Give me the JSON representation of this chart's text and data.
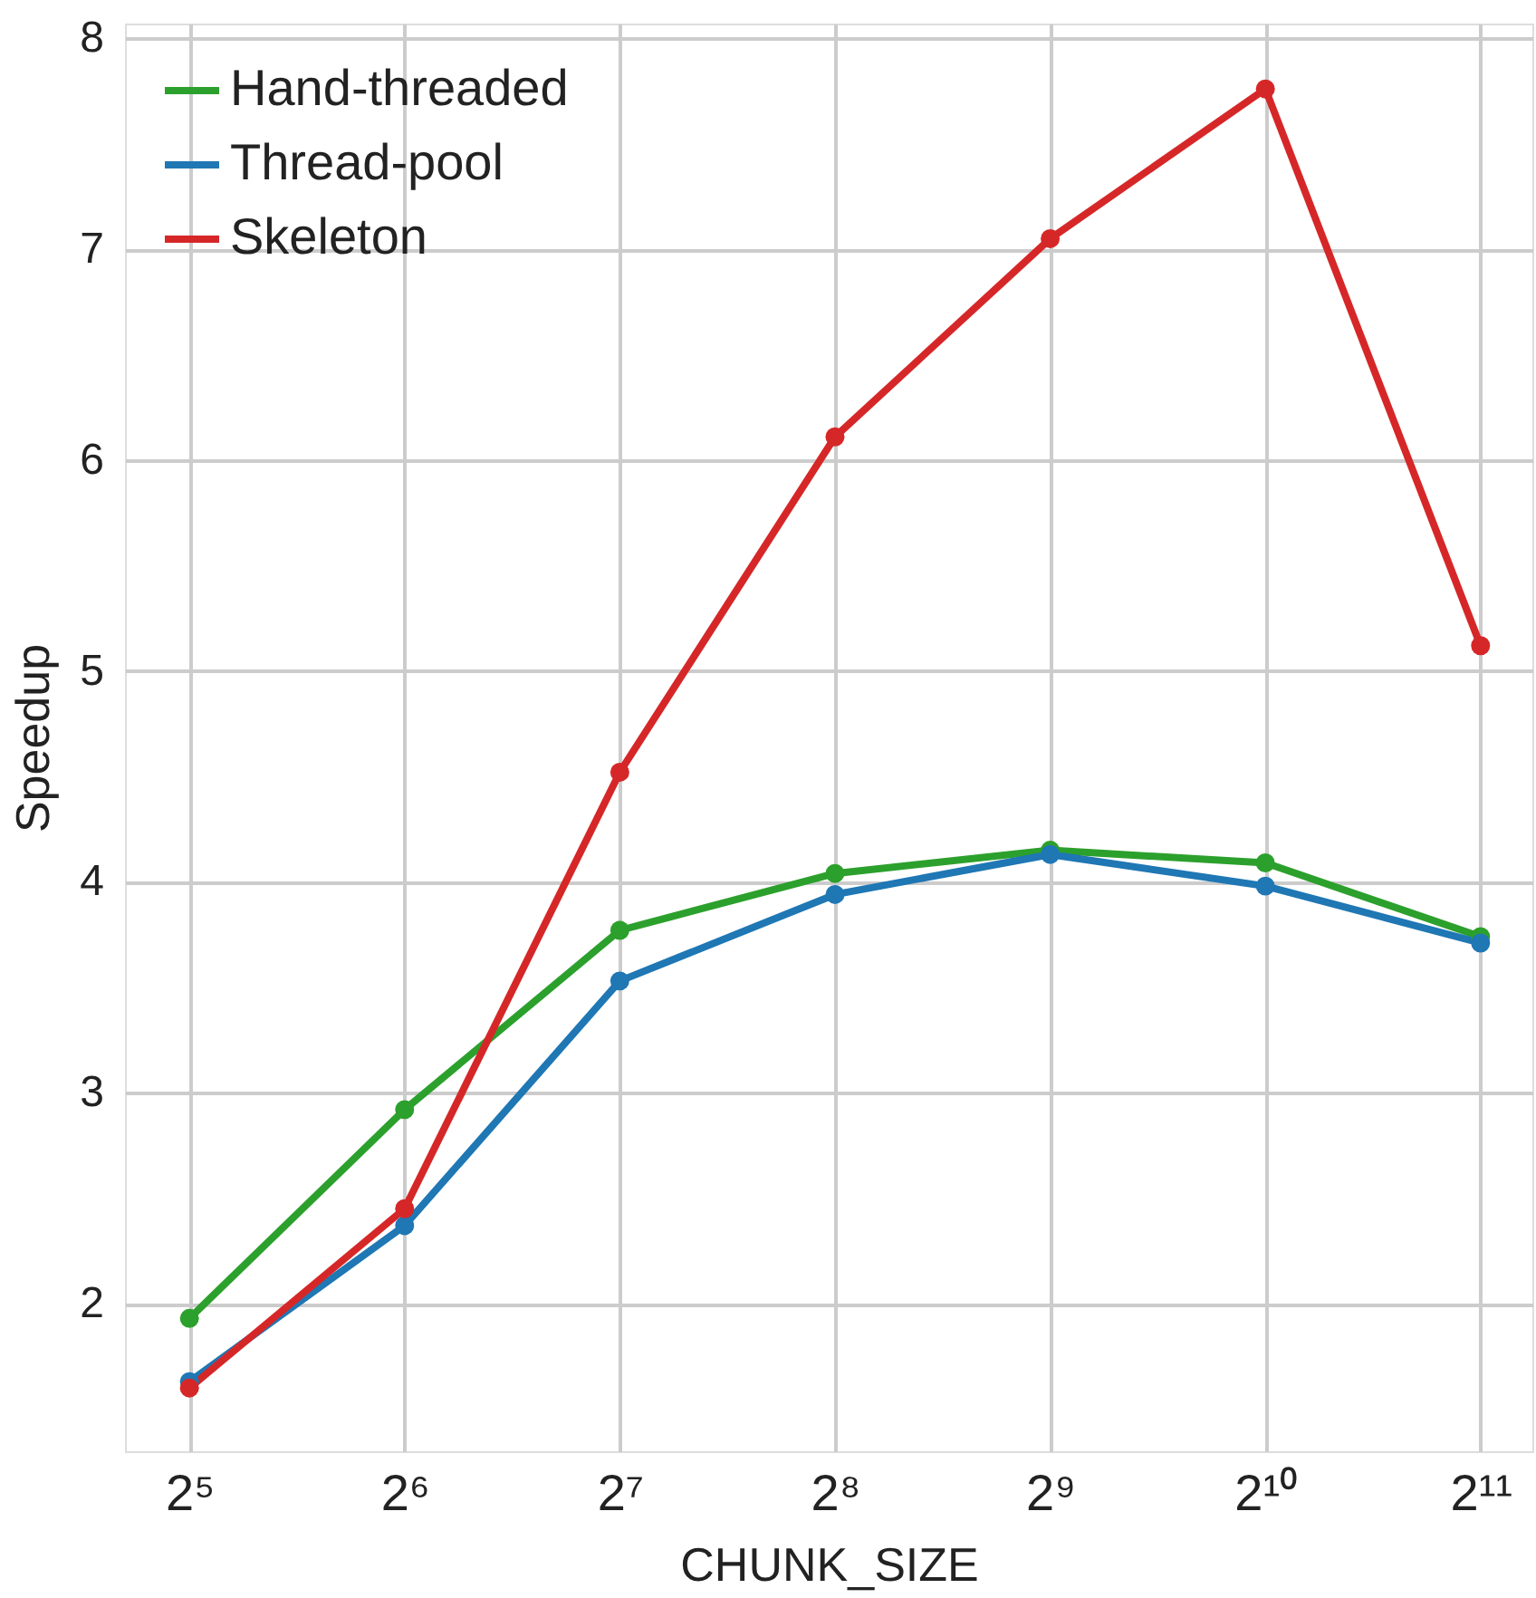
{
  "chart_data": {
    "type": "line",
    "xlabel": "CHUNK_SIZE",
    "ylabel": "Speedup",
    "x": [
      32,
      64,
      128,
      256,
      512,
      1024,
      2048
    ],
    "series": [
      {
        "name": "Hand-threaded",
        "color": "#2ca02c",
        "values": [
          1.93,
          2.92,
          3.77,
          4.04,
          4.15,
          4.09,
          3.74
        ]
      },
      {
        "name": "Thread-pool",
        "color": "#1f77b4",
        "values": [
          1.63,
          2.37,
          3.53,
          3.94,
          4.13,
          3.98,
          3.71
        ]
      },
      {
        "name": "Skeleton",
        "color": "#d62728",
        "values": [
          1.6,
          2.45,
          4.52,
          6.11,
          7.05,
          7.76,
          5.12
        ]
      }
    ],
    "log": "x",
    "xlim": [
      26,
      2420
    ],
    "xticks": [
      {
        "value": 32,
        "label": "2⁵"
      },
      {
        "value": 64,
        "label": "2⁶"
      },
      {
        "value": 128,
        "label": "2⁷"
      },
      {
        "value": 256,
        "label": "2⁸"
      },
      {
        "value": 512,
        "label": "2⁹"
      },
      {
        "value": 1024,
        "label": "2¹⁰"
      },
      {
        "value": 2048,
        "label": "2¹¹"
      }
    ],
    "ylim": [
      1.3,
      8.07
    ],
    "yticks": [
      2,
      3,
      4,
      5,
      6,
      7,
      8
    ],
    "grid": true,
    "legend": "top left",
    "marker": "circle",
    "line_style": "solid"
  }
}
